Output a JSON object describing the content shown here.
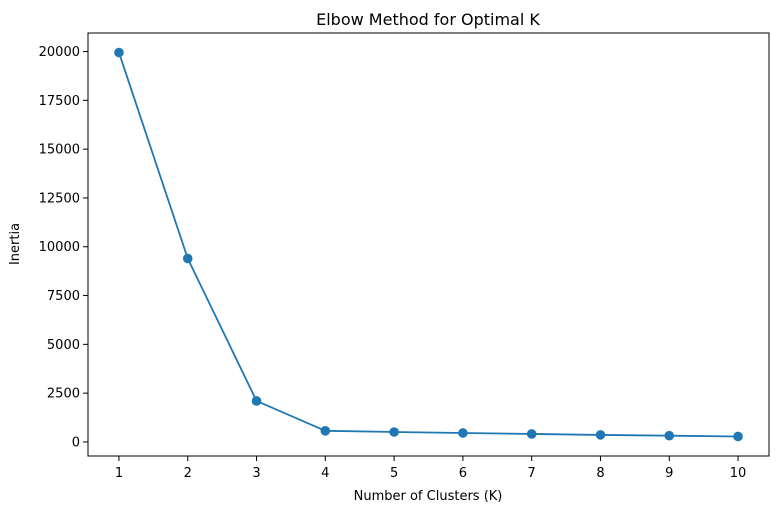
{
  "chart_data": {
    "type": "line",
    "title": "Elbow Method for Optimal K",
    "xlabel": "Number of Clusters (K)",
    "ylabel": "Inertia",
    "x": [
      1,
      2,
      3,
      4,
      5,
      6,
      7,
      8,
      9,
      10
    ],
    "series": [
      {
        "values": [
          19950,
          9400,
          2100,
          570,
          510,
          460,
          410,
          360,
          320,
          280
        ],
        "color": "#1f77b4",
        "marker": "circle"
      }
    ],
    "xticks": [
      1,
      2,
      3,
      4,
      5,
      6,
      7,
      8,
      9,
      10
    ],
    "yticks": [
      0,
      2500,
      5000,
      7500,
      10000,
      12500,
      15000,
      17500,
      20000
    ],
    "xlim": [
      0.55,
      10.45
    ],
    "ylim": [
      -720,
      20950
    ],
    "grid": false,
    "legend": "none"
  }
}
